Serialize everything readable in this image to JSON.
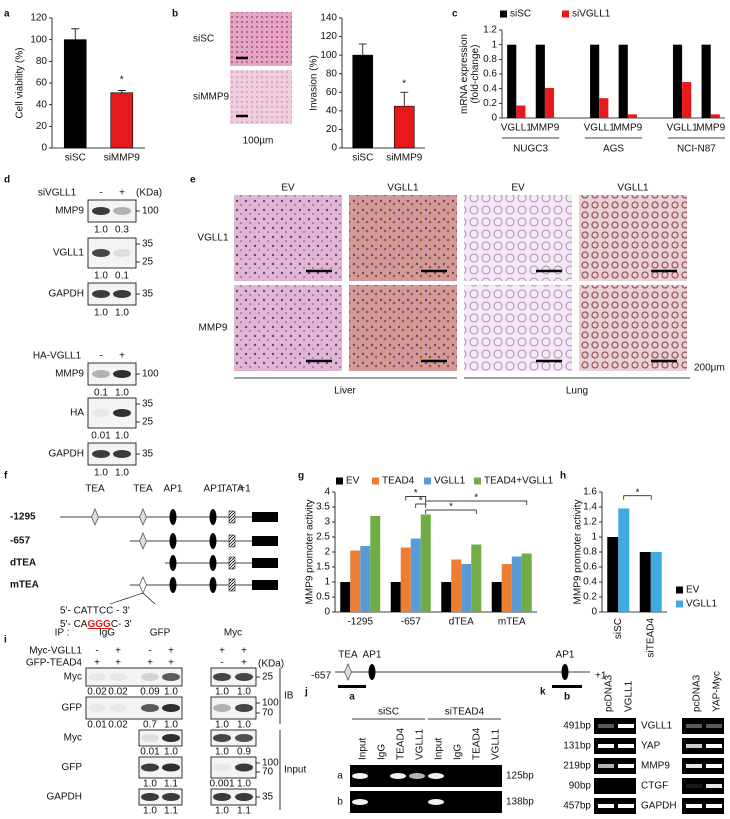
{
  "chart_data": [
    {
      "type": "bar",
      "ylabel": [
        "Cell viability (%)"
      ],
      "categories": [
        "siSC",
        "siMMP9"
      ],
      "values": [
        100,
        51
      ],
      "errors": [
        10,
        2
      ],
      "colors": [
        "#000000",
        "#e8191b"
      ],
      "ylim": [
        0,
        120
      ],
      "yticks": [
        0,
        20,
        40,
        60,
        80,
        100,
        120
      ],
      "annotations": [
        "*"
      ]
    },
    {
      "type": "bar",
      "ylabel": [
        "Invasion (%)"
      ],
      "categories": [
        "siSC",
        "siMMP9"
      ],
      "values": [
        100,
        45
      ],
      "errors": [
        12,
        15
      ],
      "colors": [
        "#000000",
        "#e8191b"
      ],
      "ylim": [
        0,
        140
      ],
      "yticks": [
        0,
        20,
        40,
        60,
        80,
        100,
        120,
        140
      ],
      "annotations": [
        "*"
      ]
    },
    {
      "type": "grouped-bar",
      "ylabel": [
        "mRNA expression",
        "(fold-change)"
      ],
      "categories": [
        "VGLL1",
        "MMP9",
        "VGLL1",
        "MMP9",
        "VGLL1",
        "MMP9"
      ],
      "groups": [
        "NUGC3",
        "AGS",
        "NCI-N87"
      ],
      "series": [
        {
          "name": "siSC",
          "color": "#000000",
          "values": [
            1,
            1,
            1,
            1,
            1,
            1
          ]
        },
        {
          "name": "siVGLL1",
          "color": "#e8191b",
          "values": [
            0.17,
            0.41,
            0.27,
            0.05,
            0.49,
            0.05
          ]
        }
      ],
      "ylim": [
        0,
        1.2
      ],
      "yticks": [
        0,
        0.2,
        0.4,
        0.6,
        0.8,
        1,
        1.2
      ],
      "legend": "top"
    },
    {
      "type": "grouped-bar",
      "ylabel": [
        "MMP9 promoter activity"
      ],
      "categories": [
        "-1295",
        "-657",
        "dTEA",
        "mTEA"
      ],
      "series": [
        {
          "name": "EV",
          "color": "#000000",
          "values": [
            1,
            1,
            1,
            1
          ]
        },
        {
          "name": "TEAD4",
          "color": "#ed7d31",
          "values": [
            2.05,
            2.15,
            1.75,
            1.6
          ]
        },
        {
          "name": "VGLL1",
          "color": "#5b9bd5",
          "values": [
            2.2,
            2.45,
            1.6,
            1.85
          ]
        },
        {
          "name": "TEAD4+VGLL1",
          "color": "#70ad47",
          "values": [
            3.2,
            3.25,
            2.25,
            1.95
          ]
        }
      ],
      "ylim": [
        0,
        4
      ],
      "yticks": [
        0,
        0.5,
        1,
        1.5,
        2,
        2.5,
        3,
        3.5,
        4
      ],
      "legend": "top",
      "annotations": [
        "*",
        "*",
        "*",
        "*"
      ]
    },
    {
      "type": "grouped-bar",
      "ylabel": [
        "MMP9 promoter activity"
      ],
      "categories": [
        "siSC",
        "siTEAD4"
      ],
      "series": [
        {
          "name": "EV",
          "color": "#000000",
          "values": [
            1,
            0.8
          ]
        },
        {
          "name": "VGLL1",
          "color": "#3fa9e0",
          "values": [
            1.38,
            0.8
          ]
        }
      ],
      "ylim": [
        0,
        1.6
      ],
      "yticks": [
        0,
        0.2,
        0.4,
        0.6,
        0.8,
        1,
        1.2,
        1.4,
        1.6
      ],
      "legend": "right",
      "annotations": [
        "*"
      ]
    }
  ],
  "letters": [
    "a",
    "b",
    "c",
    "d",
    "e",
    "f",
    "g",
    "h",
    "i",
    "j",
    "k"
  ],
  "b_image": {
    "labels": [
      "siSC",
      "siMMP9"
    ],
    "scale": "100µm"
  },
  "d": {
    "unit": "(KDa)",
    "top": {
      "treat": "siVGLL1",
      "signs": [
        "-",
        "+"
      ],
      "rows": [
        {
          "name": "MMP9",
          "quant": [
            "1.0",
            "0.3"
          ],
          "mw": [
            "100"
          ]
        },
        {
          "name": "VGLL1",
          "quant": [
            "1.0",
            "0.1"
          ],
          "mw": [
            "35",
            "25"
          ]
        },
        {
          "name": "GAPDH",
          "quant": [
            "1.0",
            "1.0"
          ],
          "mw": [
            "35"
          ]
        }
      ]
    },
    "bottom": {
      "treat": "HA-VGLL1",
      "signs": [
        "-",
        "+"
      ],
      "rows": [
        {
          "name": "MMP9",
          "quant": [
            "0.1",
            "1.0"
          ],
          "mw": [
            "100"
          ]
        },
        {
          "name": "HA",
          "quant": [
            "0.01",
            "1.0"
          ],
          "mw": [
            "35",
            "25"
          ]
        },
        {
          "name": "GAPDH",
          "quant": [
            "1.0",
            "1.0"
          ],
          "mw": [
            "35"
          ]
        }
      ]
    }
  },
  "e": {
    "cols": [
      "EV",
      "VGLL1",
      "EV",
      "VGLL1"
    ],
    "rows": [
      "VGLL1",
      "MMP9"
    ],
    "tissues": [
      "Liver",
      "Lung"
    ],
    "scale": "200µm"
  },
  "f": {
    "sites": [
      "TEA",
      "TEA",
      "AP1",
      "AP1",
      "TATA",
      "+1"
    ],
    "constructs": [
      "-1295",
      "-657",
      "dTEA",
      "mTEA"
    ],
    "seq1": "5'- CATTCC - 3'",
    "seq2": [
      "5'- CA",
      "GGG",
      "C- 3'"
    ]
  },
  "i": {
    "ip": "IP :",
    "groups": [
      "IgG",
      "GFP",
      "Myc"
    ],
    "unit": "(KDa)",
    "ib": "IB",
    "input": "Input",
    "treatments": [
      {
        "name": "Myc-VGLL1",
        "signs": [
          "-",
          "+",
          "-",
          "+",
          "+",
          "+"
        ]
      },
      {
        "name": "GFP-TEAD4",
        "signs": [
          "+",
          "+",
          "+",
          "+",
          "-",
          "+"
        ]
      }
    ],
    "rows": [
      {
        "name": "Myc",
        "left": [
          "0.02",
          "0.02",
          "0.09",
          "1.0"
        ],
        "right": [
          "1.0",
          "1.0"
        ],
        "mw": [
          "25"
        ]
      },
      {
        "name": "GFP",
        "left": [
          "0.01",
          "0.02",
          "0.7",
          "1.0"
        ],
        "right": [
          "1.0",
          "1.0"
        ],
        "mw": [
          "100",
          "70"
        ]
      },
      {
        "name": "Myc",
        "left": [
          "0.01",
          "1.0"
        ],
        "right": [
          "1.0",
          "0.9"
        ],
        "mw": []
      },
      {
        "name": "GFP",
        "left": [
          "1.0",
          "1.1"
        ],
        "right": [
          "0.001",
          "1.0"
        ],
        "mw": [
          "100",
          "70"
        ]
      },
      {
        "name": "GAPDH",
        "left": [
          "1.0",
          "1.1"
        ],
        "right": [
          "1.0",
          "1.1"
        ],
        "mw": [
          "35"
        ]
      }
    ]
  },
  "j": {
    "sites": [
      "TEA",
      "AP1",
      "AP1"
    ],
    "start": "-657",
    "end": "+1",
    "regions": [
      "a",
      "b"
    ],
    "groups": [
      "siSC",
      "siTEAD4"
    ],
    "lanes": [
      "Input",
      "IgG",
      "TEAD4",
      "VGLL1",
      "Input",
      "IgG",
      "TEAD4",
      "VGLL1"
    ],
    "rows": [
      "a",
      "b"
    ],
    "sizes": [
      "125bp",
      "138bp"
    ]
  },
  "k": {
    "lanes": [
      "pcDNA3",
      "VGLL1",
      "pcDNA3",
      "YAP-Myc"
    ],
    "sizes": [
      "491bp",
      "131bp",
      "219bp",
      "90bp",
      "457bp"
    ],
    "genes": [
      "VGLL1",
      "YAP",
      "MMP9",
      "CTGF",
      "GAPDH"
    ]
  }
}
